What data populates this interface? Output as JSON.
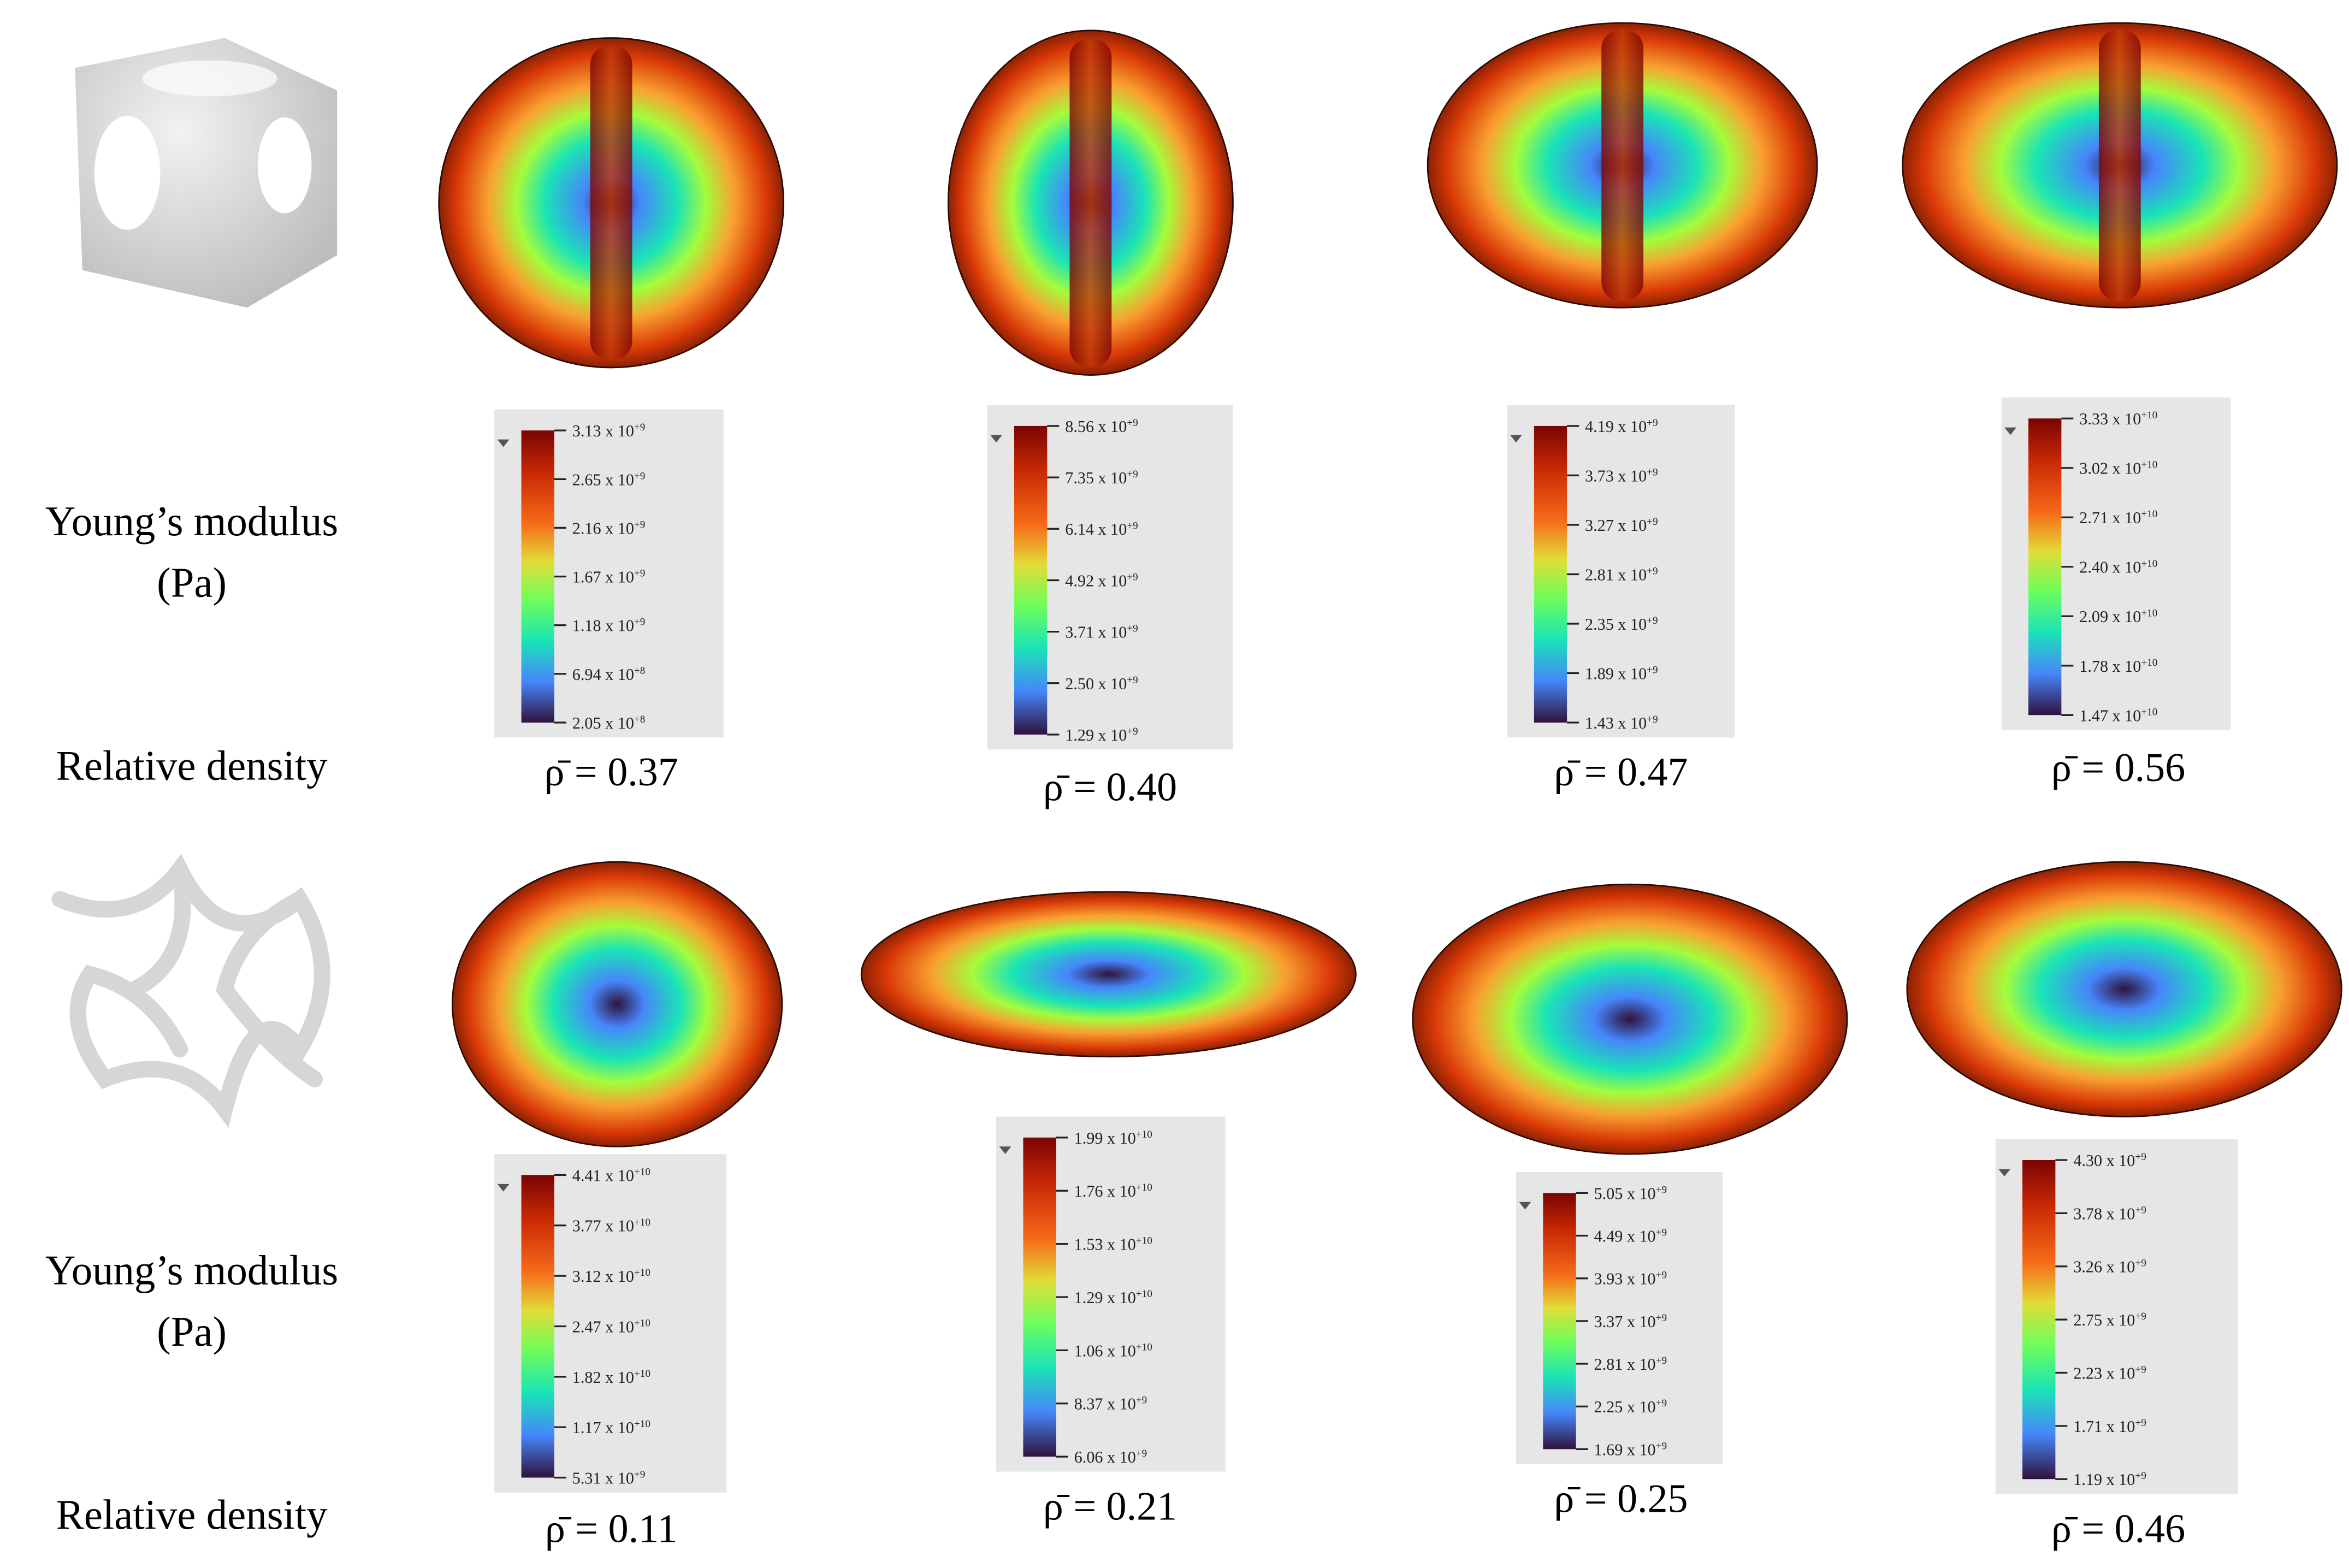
{
  "rows": [
    {
      "label_lines": [
        "Young’s modulus",
        "(Pa)"
      ],
      "density_label": "Relative density",
      "panels": [
        {
          "ticks": [
            {
              "mantissa": "3.13 x 10",
              "exponent": "+9"
            },
            {
              "mantissa": "2.65 x 10",
              "exponent": "+9"
            },
            {
              "mantissa": "2.16 x 10",
              "exponent": "+9"
            },
            {
              "mantissa": "1.67 x 10",
              "exponent": "+9"
            },
            {
              "mantissa": "1.18 x 10",
              "exponent": "+9"
            },
            {
              "mantissa": "6.94 x 10",
              "exponent": "+8"
            },
            {
              "mantissa": "2.05 x 10",
              "exponent": "+8"
            }
          ],
          "density": "ρ̄ = 0.37"
        },
        {
          "ticks": [
            {
              "mantissa": "8.56 x 10",
              "exponent": "+9"
            },
            {
              "mantissa": "7.35 x 10",
              "exponent": "+9"
            },
            {
              "mantissa": "6.14 x 10",
              "exponent": "+9"
            },
            {
              "mantissa": "4.92 x 10",
              "exponent": "+9"
            },
            {
              "mantissa": "3.71 x 10",
              "exponent": "+9"
            },
            {
              "mantissa": "2.50 x 10",
              "exponent": "+9"
            },
            {
              "mantissa": "1.29 x 10",
              "exponent": "+9"
            }
          ],
          "density": "ρ̄ = 0.40"
        },
        {
          "ticks": [
            {
              "mantissa": "4.19 x 10",
              "exponent": "+9"
            },
            {
              "mantissa": "3.73 x 10",
              "exponent": "+9"
            },
            {
              "mantissa": "3.27 x 10",
              "exponent": "+9"
            },
            {
              "mantissa": "2.81 x 10",
              "exponent": "+9"
            },
            {
              "mantissa": "2.35 x 10",
              "exponent": "+9"
            },
            {
              "mantissa": "1.89 x 10",
              "exponent": "+9"
            },
            {
              "mantissa": "1.43 x 10",
              "exponent": "+9"
            }
          ],
          "density": "ρ̄ = 0.47"
        },
        {
          "ticks": [
            {
              "mantissa": "3.33 x 10",
              "exponent": "+10"
            },
            {
              "mantissa": "3.02 x 10",
              "exponent": "+10"
            },
            {
              "mantissa": "2.71 x 10",
              "exponent": "+10"
            },
            {
              "mantissa": "2.40 x 10",
              "exponent": "+10"
            },
            {
              "mantissa": "2.09 x 10",
              "exponent": "+10"
            },
            {
              "mantissa": "1.78 x 10",
              "exponent": "+10"
            },
            {
              "mantissa": "1.47 x 10",
              "exponent": "+10"
            }
          ],
          "density": "ρ̄ = 0.56"
        }
      ]
    },
    {
      "label_lines": [
        "Young’s modulus",
        "(Pa)"
      ],
      "density_label": "Relative density",
      "panels": [
        {
          "ticks": [
            {
              "mantissa": "4.41 x 10",
              "exponent": "+10"
            },
            {
              "mantissa": "3.77 x 10",
              "exponent": "+10"
            },
            {
              "mantissa": "3.12 x 10",
              "exponent": "+10"
            },
            {
              "mantissa": "2.47 x 10",
              "exponent": "+10"
            },
            {
              "mantissa": "1.82 x 10",
              "exponent": "+10"
            },
            {
              "mantissa": "1.17 x 10",
              "exponent": "+10"
            },
            {
              "mantissa": "5.31 x 10",
              "exponent": "+9"
            }
          ],
          "density": "ρ̄ = 0.11"
        },
        {
          "ticks": [
            {
              "mantissa": "1.99 x 10",
              "exponent": "+10"
            },
            {
              "mantissa": "1.76 x 10",
              "exponent": "+10"
            },
            {
              "mantissa": "1.53 x 10",
              "exponent": "+10"
            },
            {
              "mantissa": "1.29 x 10",
              "exponent": "+10"
            },
            {
              "mantissa": "1.06 x 10",
              "exponent": "+10"
            },
            {
              "mantissa": "8.37 x 10",
              "exponent": "+9"
            },
            {
              "mantissa": "6.06 x 10",
              "exponent": "+9"
            }
          ],
          "density": "ρ̄ = 0.21"
        },
        {
          "ticks": [
            {
              "mantissa": "5.05 x 10",
              "exponent": "+9"
            },
            {
              "mantissa": "4.49 x 10",
              "exponent": "+9"
            },
            {
              "mantissa": "3.93 x 10",
              "exponent": "+9"
            },
            {
              "mantissa": "3.37 x 10",
              "exponent": "+9"
            },
            {
              "mantissa": "2.81 x 10",
              "exponent": "+9"
            },
            {
              "mantissa": "2.25 x 10",
              "exponent": "+9"
            },
            {
              "mantissa": "1.69 x 10",
              "exponent": "+9"
            }
          ],
          "density": "ρ̄ = 0.25"
        },
        {
          "ticks": [
            {
              "mantissa": "4.30 x 10",
              "exponent": "+9"
            },
            {
              "mantissa": "3.78 x 10",
              "exponent": "+9"
            },
            {
              "mantissa": "3.26 x 10",
              "exponent": "+9"
            },
            {
              "mantissa": "2.75 x 10",
              "exponent": "+9"
            },
            {
              "mantissa": "2.23 x 10",
              "exponent": "+9"
            },
            {
              "mantissa": "1.71 x 10",
              "exponent": "+9"
            },
            {
              "mantissa": "1.19 x 10",
              "exponent": "+9"
            }
          ],
          "density": "ρ̄ = 0.46"
        }
      ]
    }
  ]
}
